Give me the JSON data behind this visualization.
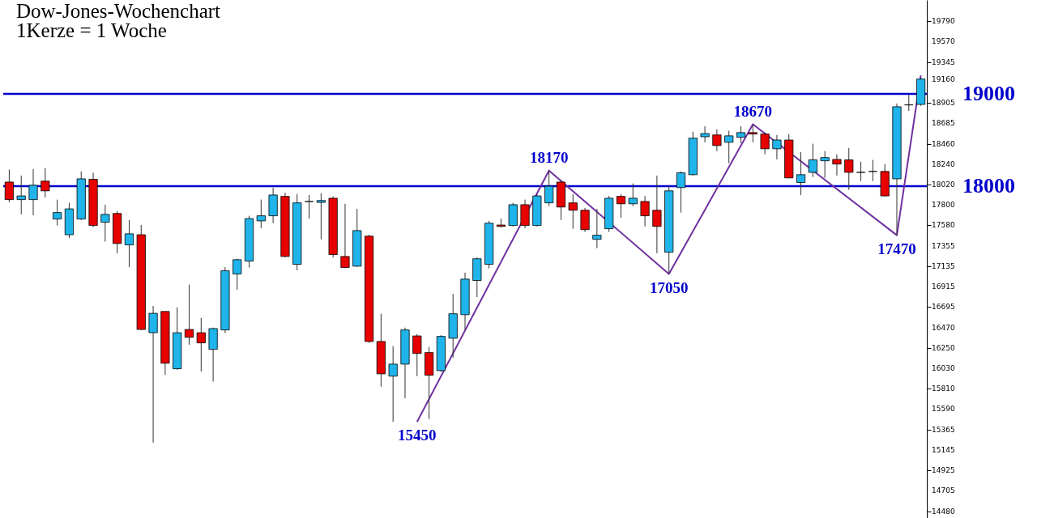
{
  "chart_data": {
    "type": "candlestick",
    "title": "Dow-Jones-Wochenchart",
    "subtitle": "1Kerze = 1 Woche",
    "categories": [
      null,
      null,
      null,
      null,
      null,
      null,
      null,
      null,
      null,
      null,
      null,
      null,
      null,
      null,
      null,
      null,
      null,
      null,
      null,
      null,
      null,
      null,
      null,
      null,
      null,
      null,
      null,
      null,
      null,
      null,
      null,
      null,
      null,
      null,
      null,
      null,
      null,
      null,
      null,
      null,
      null,
      null,
      null,
      null,
      null,
      null,
      null,
      null,
      null,
      null,
      null,
      null,
      null,
      null,
      null,
      null,
      null,
      null,
      null,
      null,
      null,
      null,
      null,
      null,
      null,
      null,
      null,
      null,
      null,
      null,
      null,
      null,
      null,
      null,
      null,
      null,
      null
    ],
    "ohlc": [
      [
        18045,
        18180,
        17825,
        17855
      ],
      [
        17855,
        18115,
        17695,
        17895
      ],
      [
        17855,
        18185,
        17685,
        18010
      ],
      [
        18055,
        18195,
        17880,
        17950
      ],
      [
        17645,
        17855,
        17575,
        17715
      ],
      [
        17475,
        17820,
        17440,
        17755
      ],
      [
        17645,
        18160,
        17635,
        18080
      ],
      [
        18075,
        18145,
        17555,
        17575
      ],
      [
        17610,
        17800,
        17400,
        17695
      ],
      [
        17705,
        17730,
        17275,
        17380
      ],
      [
        17365,
        17635,
        17125,
        17485
      ],
      [
        17475,
        17580,
        16445,
        16450
      ],
      [
        16415,
        16705,
        15225,
        16625
      ],
      [
        16645,
        16645,
        15960,
        16085
      ],
      [
        16025,
        16690,
        16015,
        16415
      ],
      [
        16450,
        16935,
        16285,
        16365
      ],
      [
        16415,
        16575,
        15995,
        16305
      ],
      [
        16235,
        16470,
        15885,
        16460
      ],
      [
        16445,
        17125,
        16410,
        17085
      ],
      [
        17050,
        17215,
        16880,
        17205
      ],
      [
        17190,
        17680,
        17120,
        17650
      ],
      [
        17625,
        17855,
        17545,
        17680
      ],
      [
        17680,
        17985,
        17600,
        17905
      ],
      [
        17890,
        17930,
        17230,
        17240
      ],
      [
        17155,
        17915,
        17090,
        17820
      ],
      [
        17835,
        17905,
        17650,
        17835
      ],
      [
        17825,
        17925,
        17425,
        17845
      ],
      [
        17870,
        17890,
        17230,
        17260
      ],
      [
        17240,
        17810,
        17120,
        17120
      ],
      [
        17135,
        17755,
        17125,
        17520
      ],
      [
        17460,
        17475,
        16305,
        16320
      ],
      [
        16320,
        16620,
        15830,
        15970
      ],
      [
        15945,
        16270,
        15450,
        16075
      ],
      [
        16075,
        16470,
        15705,
        16445
      ],
      [
        16380,
        16400,
        15945,
        16190
      ],
      [
        16200,
        16260,
        15480,
        15955
      ],
      [
        16005,
        16390,
        15990,
        16375
      ],
      [
        16355,
        16835,
        16145,
        16620
      ],
      [
        16610,
        17065,
        16445,
        16995
      ],
      [
        16980,
        17230,
        16800,
        17215
      ],
      [
        17155,
        17625,
        17110,
        17600
      ],
      [
        17580,
        17650,
        17555,
        17565
      ],
      [
        17575,
        17820,
        17565,
        17800
      ],
      [
        17800,
        17855,
        17545,
        17575
      ],
      [
        17575,
        17915,
        17565,
        17895
      ],
      [
        17820,
        18170,
        17785,
        18000
      ],
      [
        18045,
        18065,
        17635,
        17775
      ],
      [
        17820,
        17915,
        17540,
        17740
      ],
      [
        17740,
        17765,
        17505,
        17530
      ],
      [
        17425,
        17755,
        17330,
        17470
      ],
      [
        17540,
        17895,
        17505,
        17870
      ],
      [
        17890,
        17915,
        17660,
        17810
      ],
      [
        17810,
        18030,
        17785,
        17870
      ],
      [
        17835,
        17895,
        17565,
        17680
      ],
      [
        17740,
        18115,
        17275,
        17565
      ],
      [
        17285,
        18000,
        17050,
        17950
      ],
      [
        17985,
        18160,
        17715,
        18145
      ],
      [
        18125,
        18590,
        18115,
        18520
      ],
      [
        18535,
        18650,
        18475,
        18570
      ],
      [
        18555,
        18615,
        18380,
        18440
      ],
      [
        18475,
        18600,
        18250,
        18545
      ],
      [
        18530,
        18650,
        18465,
        18580
      ],
      [
        18580,
        18670,
        18475,
        18565
      ],
      [
        18565,
        18580,
        18345,
        18405
      ],
      [
        18405,
        18555,
        18290,
        18500
      ],
      [
        18500,
        18565,
        18090,
        18090
      ],
      [
        18040,
        18370,
        17905,
        18125
      ],
      [
        18150,
        18460,
        18100,
        18285
      ],
      [
        18275,
        18380,
        18090,
        18310
      ],
      [
        18290,
        18345,
        18115,
        18240
      ],
      [
        18285,
        18415,
        17960,
        18150
      ],
      [
        18150,
        18265,
        18055,
        18150
      ],
      [
        18160,
        18285,
        18055,
        18160
      ],
      [
        18160,
        18240,
        17890,
        17895
      ],
      [
        18080,
        18895,
        17470,
        18860
      ],
      [
        18880,
        18990,
        18815,
        18880
      ],
      [
        18885,
        19175,
        18870,
        19160
      ]
    ],
    "ylim": [
      14410,
      20015
    ],
    "yticks": [
      14480,
      14705,
      14925,
      15145,
      15365,
      15590,
      15810,
      16030,
      16250,
      16470,
      16695,
      16915,
      17135,
      17355,
      17580,
      17800,
      18020,
      18240,
      18460,
      18685,
      18905,
      19160,
      19345,
      19570,
      19790
    ],
    "tick_labels": "y",
    "ref_lines": [
      {
        "axis": "y",
        "value": 19000,
        "label": "19000",
        "color": "#0000cc"
      },
      {
        "axis": "y",
        "value": 18000,
        "label": "18000",
        "color": "#0000cc"
      }
    ],
    "series": [
      {
        "type": "line",
        "values": [
          null,
          null,
          null,
          null,
          null,
          null,
          null,
          null,
          null,
          null,
          null,
          null,
          null,
          null,
          null,
          null,
          null,
          null,
          null,
          null,
          null,
          null,
          null,
          null,
          null,
          null,
          null,
          null,
          null,
          null,
          null,
          null,
          null,
          null,
          15450,
          null,
          null,
          null,
          null,
          null,
          null,
          null,
          null,
          null,
          null,
          18170,
          null,
          null,
          null,
          null,
          null,
          null,
          null,
          null,
          null,
          17050,
          null,
          null,
          null,
          null,
          null,
          null,
          18670,
          null,
          null,
          null,
          null,
          null,
          null,
          null,
          null,
          null,
          null,
          null,
          17470,
          null,
          19200
        ],
        "color": "#7030a0"
      }
    ],
    "annotations": [
      "15450",
      "18170",
      "17050",
      "18670",
      "17470"
    ]
  }
}
